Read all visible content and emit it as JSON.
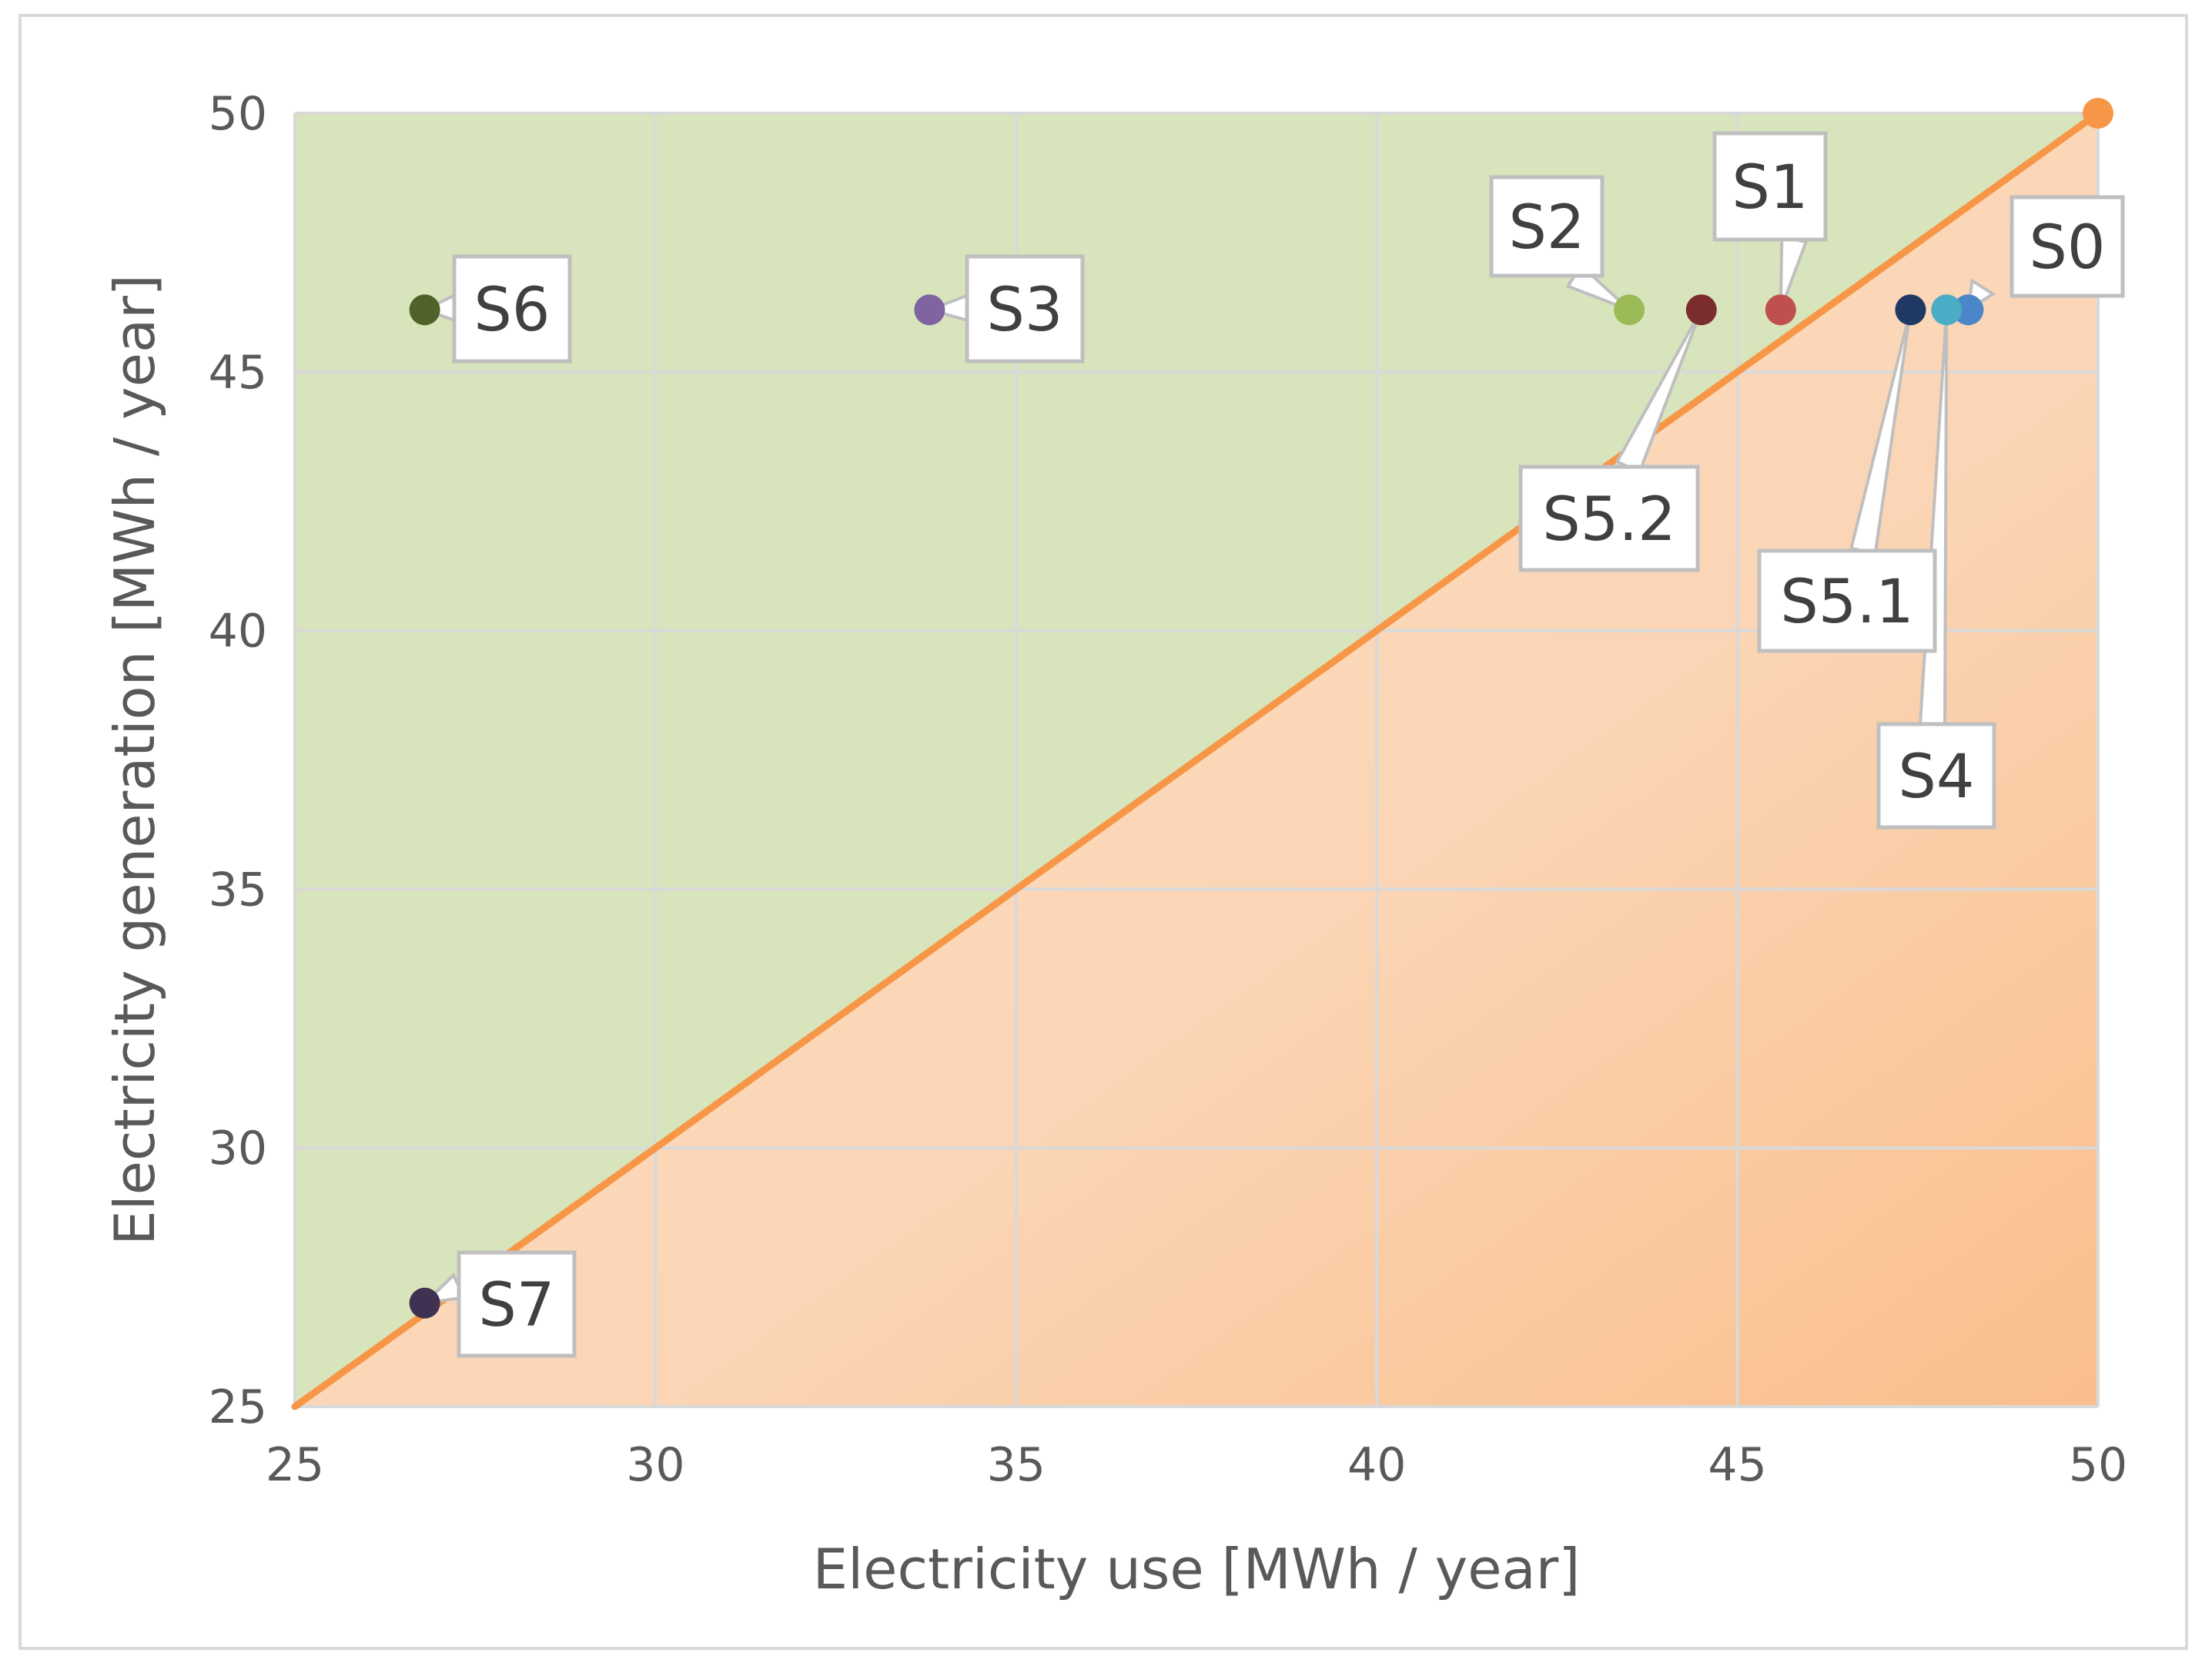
{
  "chart_data": {
    "type": "scatter",
    "title": "",
    "xlabel": "Electricity use [MWh / year]",
    "ylabel": "Electricity generation [MWh / year]",
    "xlim": [
      25,
      50
    ],
    "ylim": [
      25,
      50
    ],
    "x_ticks": [
      "25",
      "30",
      "35",
      "40",
      "45",
      "50"
    ],
    "y_ticks": [
      "25",
      "30",
      "35",
      "40",
      "45",
      "50"
    ],
    "grid": true,
    "legend": "none",
    "regions": [
      {
        "name": "generation-exceeds-use",
        "color": "#d8e4bc"
      },
      {
        "name": "use-exceeds-generation",
        "color": "#fbd5b5"
      }
    ],
    "reference_line": {
      "from": [
        25,
        25
      ],
      "to": [
        50,
        50
      ],
      "color": "#f79646"
    },
    "points": [
      {
        "label": "S0",
        "x": 48.2,
        "y": 46.2,
        "color": "#4a86c8"
      },
      {
        "label": "S1",
        "x": 45.6,
        "y": 46.2,
        "color": "#c0504d"
      },
      {
        "label": "S2",
        "x": 43.5,
        "y": 46.2,
        "color": "#9bbb59"
      },
      {
        "label": "S3",
        "x": 33.8,
        "y": 46.2,
        "color": "#8064a2"
      },
      {
        "label": "S4",
        "x": 47.9,
        "y": 46.2,
        "color": "#4bacc6"
      },
      {
        "label": "S5.1",
        "x": 47.4,
        "y": 46.2,
        "color": "#1f3864"
      },
      {
        "label": "S5.2",
        "x": 44.5,
        "y": 46.2,
        "color": "#7b2c2c"
      },
      {
        "label": "S6",
        "x": 26.8,
        "y": 46.2,
        "color": "#4f6228"
      },
      {
        "label": "S7",
        "x": 26.8,
        "y": 27.0,
        "color": "#3f3151"
      },
      {
        "label": "",
        "x": 50.0,
        "y": 50.0,
        "color": "#f79646"
      }
    ]
  }
}
